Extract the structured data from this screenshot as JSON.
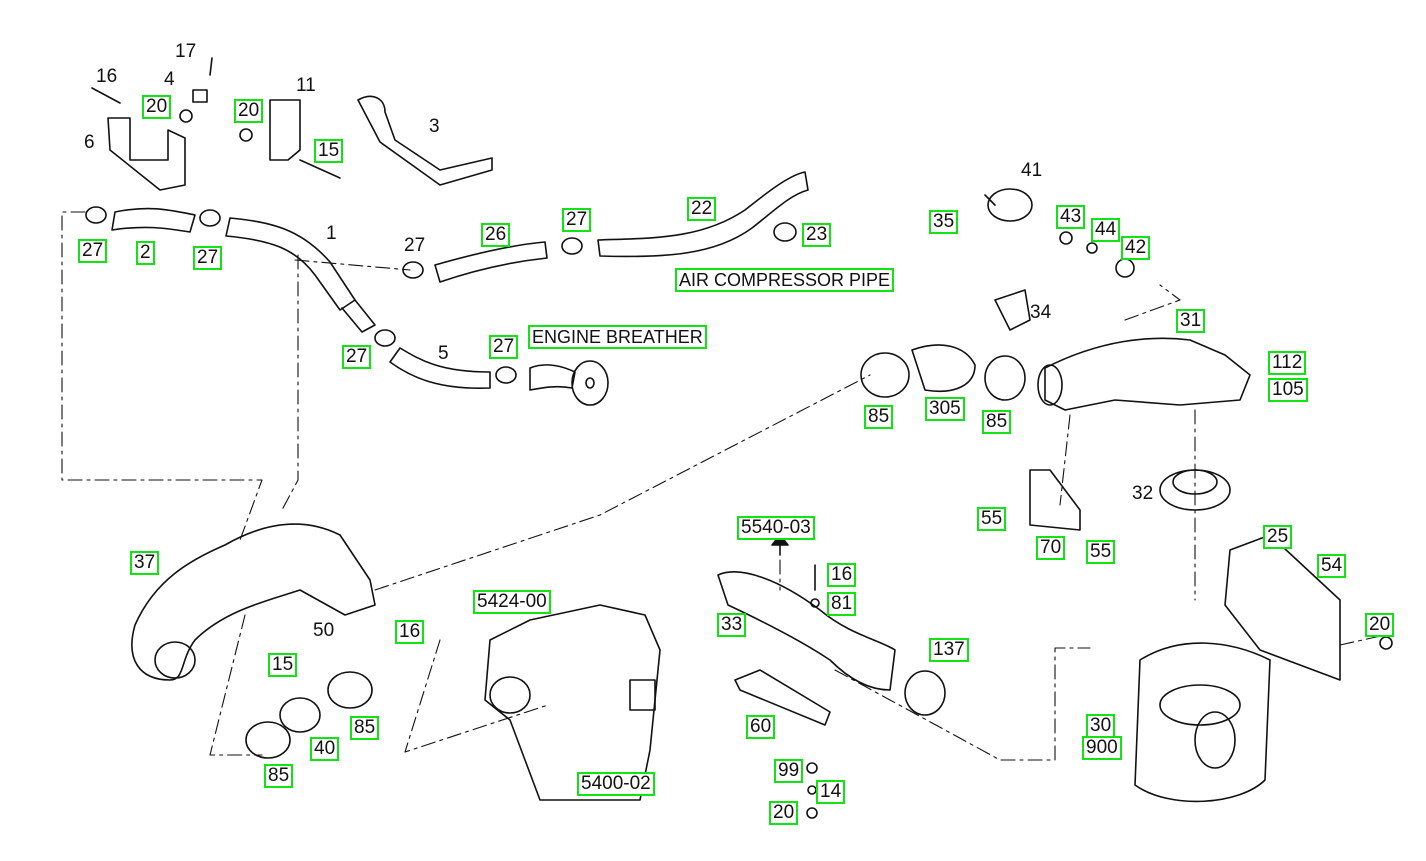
{
  "colors": {
    "hotspot_border": "#12e312",
    "line": "#111111",
    "background": "#ffffff"
  },
  "labels": {
    "l16a": "16",
    "l17": "17",
    "l4": "4",
    "l20a": "20",
    "l20b": "20",
    "l11": "11",
    "l3": "3",
    "l6": "6",
    "l15a": "15",
    "l1": "1",
    "l27a": "27",
    "l2": "2",
    "l27b": "27",
    "l27c": "27",
    "l26": "26",
    "l27d": "27",
    "l22": "22",
    "l23": "23",
    "air_compressor": "AIR COMPRESSOR PIPE",
    "l5": "5",
    "l27e": "27",
    "l27f": "27",
    "engine_breather": "ENGINE BREATHER",
    "l41": "41",
    "l35": "35",
    "l43": "43",
    "l44": "44",
    "l42": "42",
    "l34": "34",
    "l31": "31",
    "l112": "112",
    "l105": "105",
    "l85a": "85",
    "l305": "305",
    "l85b": "85",
    "l32": "32",
    "l55a": "55",
    "l70": "70",
    "l55b": "55",
    "l25": "25",
    "l54": "54",
    "l20c": "20",
    "l37": "37",
    "l50": "50",
    "l16b": "16",
    "l15b": "15",
    "l85c": "85",
    "l40": "40",
    "l85d": "85",
    "l5424": "5424-00",
    "l5400": "5400-02",
    "l5540": "5540-03",
    "l16c": "16",
    "l81": "81",
    "l33": "33",
    "l137": "137",
    "l60": "60",
    "l99": "99",
    "l14": "14",
    "l20d": "20",
    "l30": "30",
    "l900": "900"
  }
}
